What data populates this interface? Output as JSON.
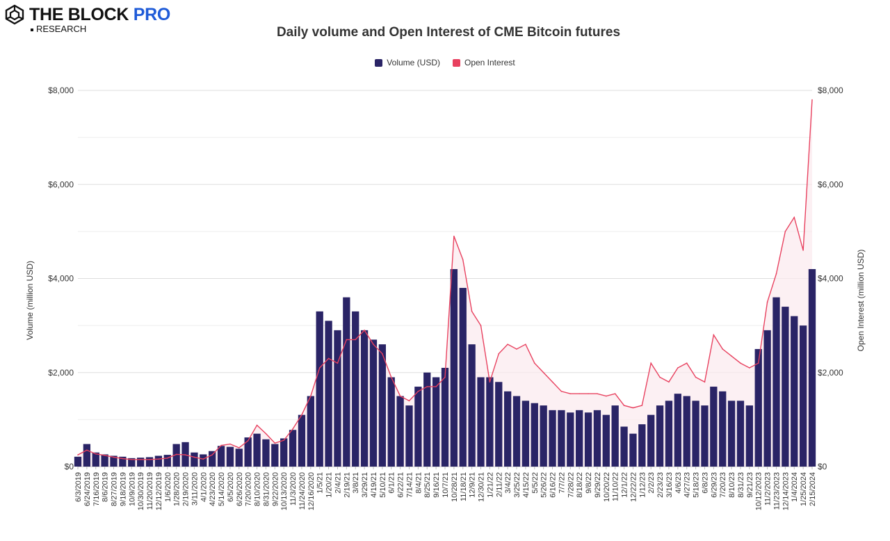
{
  "brand": {
    "name": "THE BLOCK",
    "pro": "PRO",
    "sub": "RESEARCH",
    "icon": "block-logo-icon"
  },
  "chart_data": {
    "type": "bar",
    "title": "Daily volume and Open Interest of CME Bitcoin futures",
    "ylabel": "Volume (million USD)",
    "y2label": "Open Interest (million USD)",
    "ylim": [
      0,
      8000
    ],
    "y2lim": [
      0,
      8000
    ],
    "yticks": [
      "$0",
      "$2,000",
      "$4,000",
      "$6,000",
      "$8,000"
    ],
    "y2ticks": [
      "$0",
      "$2,000",
      "$4,000",
      "$6,000",
      "$8,000"
    ],
    "grid": true,
    "legend_position": "top-center",
    "colors": {
      "volume": "#2a2466",
      "open_interest": "#e8415f",
      "oi_fill": "#fbe9ee"
    },
    "categories": [
      "6/3/2019",
      "6/24/2019",
      "7/16/2019",
      "8/6/2019",
      "8/27/2019",
      "9/18/2019",
      "10/9/2019",
      "10/30/2019",
      "11/20/2019",
      "12/12/2019",
      "1/6/2020",
      "1/28/2020",
      "2/19/2020",
      "3/11/2020",
      "4/1/2020",
      "4/23/2020",
      "5/14/2020",
      "6/5/2020",
      "6/26/2020",
      "7/20/2020",
      "8/10/2020",
      "8/31/2020",
      "9/22/2020",
      "10/13/2020",
      "11/3/2020",
      "11/24/2020",
      "12/16/2020",
      "1/5/21",
      "1/20/21",
      "2/4/21",
      "2/19/21",
      "3/8/21",
      "3/29/21",
      "4/19/21",
      "5/10/21",
      "6/1/21",
      "6/22/21",
      "7/14/21",
      "8/4/21",
      "8/25/21",
      "9/16/21",
      "10/7/21",
      "10/28/21",
      "11/18/21",
      "12/9/21",
      "12/30/21",
      "1/21/22",
      "2/11/22",
      "3/4/22",
      "3/25/22",
      "4/15/22",
      "5/5/22",
      "5/26/22",
      "6/16/22",
      "7/7/22",
      "7/28/22",
      "8/18/22",
      "9/8/22",
      "9/29/22",
      "10/20/22",
      "11/10/22",
      "12/1/22",
      "12/22/22",
      "1/12/23",
      "2/2/23",
      "2/23/23",
      "3/16/23",
      "4/6/23",
      "4/27/23",
      "5/18/23",
      "6/8/23",
      "6/29/23",
      "7/20/23",
      "8/10/23",
      "8/31/23",
      "9/21/23",
      "10/12/2023",
      "11/2/2023",
      "11/23/2023",
      "12/14/2023",
      "1/4/2024",
      "1/25/2024",
      "2/15/2024"
    ],
    "series": [
      {
        "name": "Volume (USD)",
        "type": "bar",
        "values": [
          210,
          480,
          300,
          260,
          230,
          210,
          180,
          190,
          200,
          230,
          250,
          480,
          520,
          300,
          260,
          330,
          440,
          420,
          380,
          620,
          700,
          580,
          480,
          600,
          780,
          1100,
          1500,
          3300,
          3100,
          2900,
          3600,
          3300,
          2900,
          2700,
          2600,
          1900,
          1500,
          1300,
          1700,
          2000,
          1900,
          2100,
          4200,
          3800,
          2600,
          1900,
          1900,
          1800,
          1600,
          1500,
          1400,
          1350,
          1300,
          1200,
          1200,
          1150,
          1200,
          1150,
          1200,
          1100,
          1300,
          850,
          700,
          900,
          1100,
          1300,
          1400,
          1550,
          1500,
          1400,
          1300,
          1700,
          1600,
          1400,
          1400,
          1300,
          2500,
          2900,
          3600,
          3400,
          3200,
          3000,
          4200
        ]
      },
      {
        "name": "Open Interest",
        "type": "line",
        "values": [
          250,
          350,
          270,
          240,
          200,
          170,
          150,
          150,
          150,
          160,
          180,
          260,
          250,
          200,
          160,
          250,
          450,
          480,
          400,
          550,
          880,
          700,
          500,
          560,
          800,
          1100,
          1500,
          2100,
          2300,
          2200,
          2700,
          2700,
          2900,
          2600,
          2400,
          1900,
          1500,
          1400,
          1600,
          1700,
          1700,
          1900,
          4900,
          4400,
          3300,
          3000,
          1800,
          2400,
          2600,
          2500,
          2600,
          2200,
          2000,
          1800,
          1600,
          1550,
          1550,
          1550,
          1550,
          1500,
          1550,
          1300,
          1250,
          1300,
          2200,
          1900,
          1800,
          2100,
          2200,
          1900,
          1800,
          2800,
          2500,
          2350,
          2200,
          2100,
          2200,
          3500,
          4100,
          5000,
          5300,
          4600,
          7800
        ]
      }
    ]
  }
}
